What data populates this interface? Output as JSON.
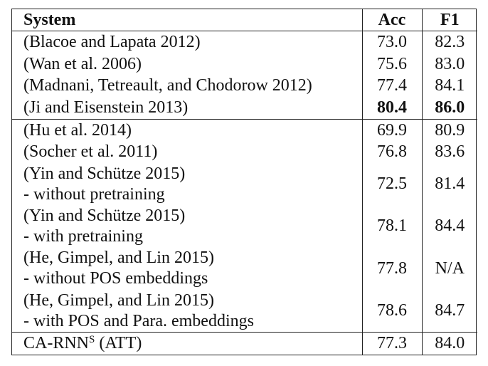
{
  "header": {
    "system": "System",
    "acc": "Acc",
    "f1": "F1"
  },
  "rows": [
    {
      "system": "(Blacoe and Lapata 2012)",
      "acc": "73.0",
      "f1": "82.3"
    },
    {
      "system": "(Wan et al. 2006)",
      "acc": "75.6",
      "f1": "83.0"
    },
    {
      "system": "(Madnani, Tetreault, and Chodorow 2012)",
      "acc": "77.4",
      "f1": "84.1"
    },
    {
      "system": "(Ji and Eisenstein 2013)",
      "acc": "80.4",
      "f1": "86.0"
    },
    {
      "system": "(Hu et al. 2014)",
      "acc": "69.9",
      "f1": "80.9"
    },
    {
      "system": "(Socher et al. 2011)",
      "acc": "76.8",
      "f1": "83.6"
    },
    {
      "system": "(Yin and Schütze 2015)",
      "note": "- without pretraining",
      "acc": "72.5",
      "f1": "81.4"
    },
    {
      "system": "(Yin and Schütze 2015)",
      "note": "- with pretraining",
      "acc": "78.1",
      "f1": "84.4"
    },
    {
      "system": "(He, Gimpel, and Lin 2015)",
      "note": "- without POS embeddings",
      "acc": "77.8",
      "f1": "N/A"
    },
    {
      "system": "(He, Gimpel, and Lin 2015)",
      "note": "- with POS and Para. embeddings",
      "acc": "78.6",
      "f1": "84.7"
    },
    {
      "system": "CA-RNN",
      "system_sup": "S",
      "system_suffix": " (ATT)",
      "acc": "77.3",
      "f1": "84.0"
    }
  ]
}
